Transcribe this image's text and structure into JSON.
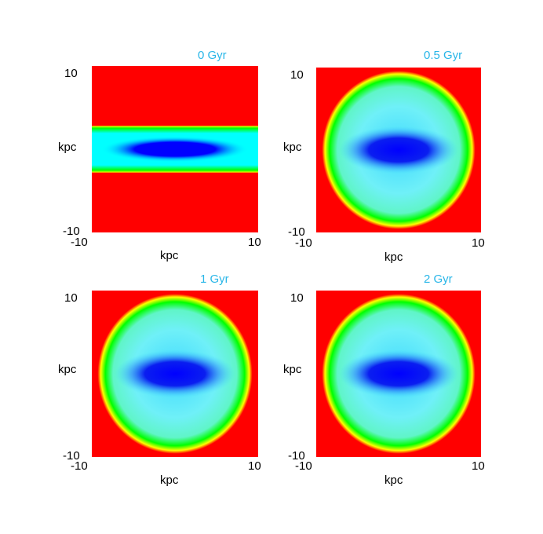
{
  "chart_data": [
    {
      "type": "heatmap",
      "title": "0 Gyr",
      "xlabel": "kpc",
      "ylabel": "kpc",
      "xlim": [
        -10,
        10
      ],
      "ylim": [
        -10,
        10
      ],
      "x_ticks": [
        "-10",
        "10"
      ],
      "y_ticks": [
        "10",
        "-10"
      ],
      "shape": "thin-disk",
      "half_width_kpc": 9.3,
      "half_height_kpc": 2.8,
      "colormap": [
        "#0000ff",
        "#00ffff",
        "#00ff00",
        "#ffff00",
        "#ff0000"
      ],
      "background_color": "#ff0000"
    },
    {
      "type": "heatmap",
      "title": "0.5 Gyr",
      "xlabel": "kpc",
      "ylabel": "kpc",
      "xlim": [
        -10,
        10
      ],
      "ylim": [
        -10,
        10
      ],
      "x_ticks": [
        "-10",
        "10"
      ],
      "y_ticks": [
        "10",
        "-10"
      ],
      "shape": "round-halo",
      "half_width_kpc": 9.3,
      "half_height_kpc": 9.6,
      "colormap": [
        "#0000ff",
        "#00ffff",
        "#00ff00",
        "#ffff00",
        "#ff0000"
      ],
      "background_color": "#ff0000"
    },
    {
      "type": "heatmap",
      "title": "1 Gyr",
      "xlabel": "kpc",
      "ylabel": "kpc",
      "xlim": [
        -10,
        10
      ],
      "ylim": [
        -10,
        10
      ],
      "x_ticks": [
        "-10",
        "10"
      ],
      "y_ticks": [
        "10",
        "-10"
      ],
      "shape": "round-halo",
      "half_width_kpc": 9.3,
      "half_height_kpc": 9.6,
      "colormap": [
        "#0000ff",
        "#00ffff",
        "#00ff00",
        "#ffff00",
        "#ff0000"
      ],
      "background_color": "#ff0000"
    },
    {
      "type": "heatmap",
      "title": "2 Gyr",
      "xlabel": "kpc",
      "ylabel": "kpc",
      "xlim": [
        -10,
        10
      ],
      "ylim": [
        -10,
        10
      ],
      "x_ticks": [
        "-10",
        "10"
      ],
      "y_ticks": [
        "10",
        "-10"
      ],
      "shape": "round-halo",
      "half_width_kpc": 9.3,
      "half_height_kpc": 9.6,
      "colormap": [
        "#0000ff",
        "#00ffff",
        "#00ff00",
        "#ffff00",
        "#ff0000"
      ],
      "background_color": "#ff0000"
    }
  ]
}
